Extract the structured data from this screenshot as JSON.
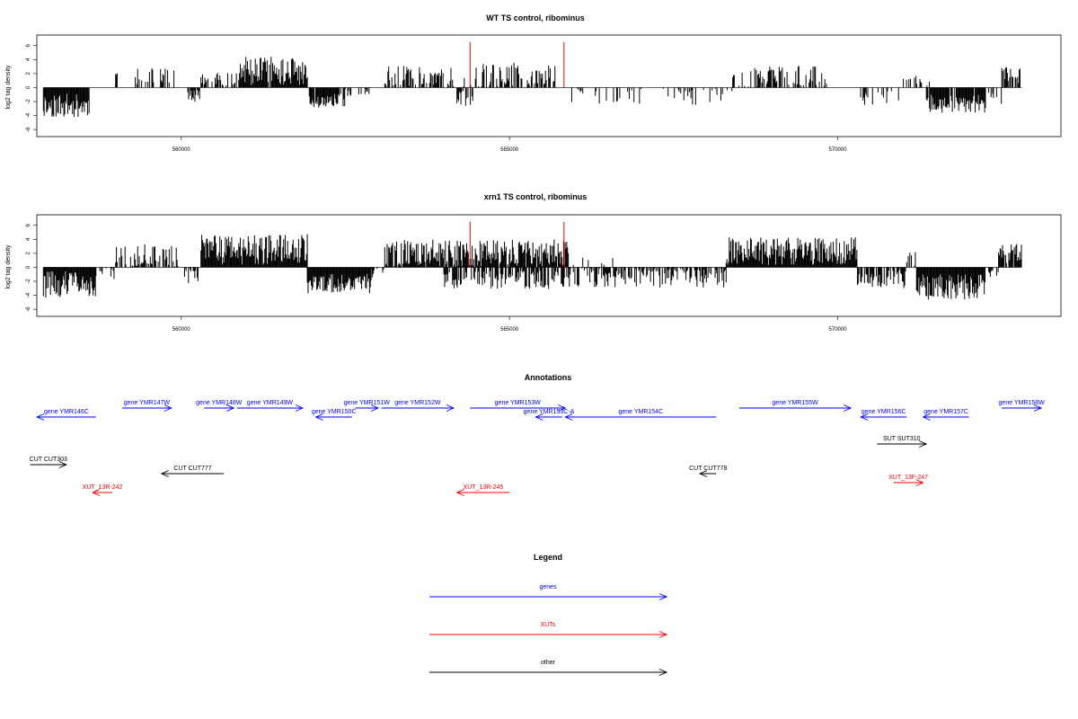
{
  "chart_data": [
    {
      "type": "bar",
      "title": "WT TS control, ribominus",
      "ylabel": "log2 tag density",
      "xlabel": "",
      "xlim": [
        557800,
        573400
      ],
      "ylim": [
        -6.5,
        7
      ],
      "yticks": [
        6,
        4,
        2,
        0,
        -2,
        -4,
        -6
      ],
      "xticks": [
        560000,
        565000,
        570000
      ],
      "xtick_labels": [
        "560000",
        "565000",
        "570000"
      ],
      "red_markers": [
        {
          "x": 564400,
          "value": 6.5
        },
        {
          "x": 565830,
          "value": 6.5
        }
      ],
      "regions": [
        {
          "start": 557900,
          "end": 558600,
          "mean": -2.6,
          "amp": 1.7,
          "density": 1.0,
          "seed": 11
        },
        {
          "start": 559000,
          "end": 559050,
          "mean": 2.0,
          "amp": 0.2,
          "density": 0.5,
          "seed": 12
        },
        {
          "start": 559300,
          "end": 559950,
          "mean": 1.6,
          "amp": 1.2,
          "density": 0.35,
          "seed": 13
        },
        {
          "start": 560100,
          "end": 560280,
          "mean": -0.8,
          "amp": 1.4,
          "density": 0.6,
          "seed": 14
        },
        {
          "start": 560300,
          "end": 560900,
          "mean": 1.2,
          "amp": 1.0,
          "density": 0.5,
          "seed": 15
        },
        {
          "start": 560900,
          "end": 561920,
          "mean": 2.4,
          "amp": 2.1,
          "density": 0.95,
          "seed": 16
        },
        {
          "start": 561950,
          "end": 562500,
          "mean": -1.9,
          "amp": 1.0,
          "density": 0.8,
          "seed": 17
        },
        {
          "start": 562500,
          "end": 562950,
          "mean": -0.4,
          "amp": 1.0,
          "density": 0.25,
          "seed": 18
        },
        {
          "start": 563100,
          "end": 564150,
          "mean": 1.5,
          "amp": 1.6,
          "density": 0.55,
          "seed": 19
        },
        {
          "start": 564300,
          "end": 565700,
          "mean": 1.7,
          "amp": 1.9,
          "density": 0.55,
          "seed": 20
        },
        {
          "start": 564200,
          "end": 564450,
          "mean": -1.5,
          "amp": 1.2,
          "density": 0.5,
          "seed": 21
        },
        {
          "start": 565900,
          "end": 567050,
          "mean": -0.8,
          "amp": 1.5,
          "density": 0.22,
          "seed": 22
        },
        {
          "start": 567200,
          "end": 568400,
          "mean": -1.0,
          "amp": 1.5,
          "density": 0.2,
          "seed": 23
        },
        {
          "start": 568400,
          "end": 569850,
          "mean": 1.6,
          "amp": 1.5,
          "density": 0.45,
          "seed": 24
        },
        {
          "start": 570350,
          "end": 570950,
          "mean": -1.5,
          "amp": 1.0,
          "density": 0.3,
          "seed": 25
        },
        {
          "start": 571000,
          "end": 571400,
          "mean": 1.0,
          "amp": 1.0,
          "density": 0.25,
          "seed": 26
        },
        {
          "start": 571350,
          "end": 572250,
          "mean": -2.3,
          "amp": 1.3,
          "density": 0.85,
          "seed": 27
        },
        {
          "start": 572300,
          "end": 572500,
          "mean": -1.5,
          "amp": 1.2,
          "density": 0.4,
          "seed": 28
        },
        {
          "start": 572500,
          "end": 572800,
          "mean": 1.8,
          "amp": 1.2,
          "density": 0.7,
          "seed": 29
        }
      ]
    },
    {
      "type": "bar",
      "title": "xrn1 TS control, ribominus",
      "ylabel": "log2 tag density",
      "xlabel": "",
      "xlim": [
        557800,
        573400
      ],
      "ylim": [
        -6.5,
        7
      ],
      "yticks": [
        6,
        4,
        2,
        0,
        -2,
        -4,
        -6
      ],
      "xticks": [
        560000,
        565000,
        570000
      ],
      "xtick_labels": [
        "560000",
        "565000",
        "570000"
      ],
      "red_markers": [
        {
          "x": 564400,
          "value": 6.5
        },
        {
          "x": 565830,
          "value": 6.5
        }
      ],
      "regions": [
        {
          "start": 557900,
          "end": 558700,
          "mean": -2.5,
          "amp": 2.0,
          "density": 1.0,
          "seed": 31
        },
        {
          "start": 558700,
          "end": 559000,
          "mean": -0.5,
          "amp": 1.2,
          "density": 0.4,
          "seed": 32
        },
        {
          "start": 559000,
          "end": 559950,
          "mean": 1.5,
          "amp": 1.8,
          "density": 0.55,
          "seed": 33
        },
        {
          "start": 560050,
          "end": 560300,
          "mean": -1.0,
          "amp": 1.3,
          "density": 0.5,
          "seed": 34
        },
        {
          "start": 560300,
          "end": 561920,
          "mean": 2.6,
          "amp": 2.2,
          "density": 1.0,
          "seed": 35
        },
        {
          "start": 561920,
          "end": 562900,
          "mean": -2.3,
          "amp": 1.4,
          "density": 1.0,
          "seed": 36
        },
        {
          "start": 562900,
          "end": 563100,
          "mean": -0.5,
          "amp": 1.0,
          "density": 0.3,
          "seed": 37
        },
        {
          "start": 563100,
          "end": 565900,
          "mean": 2.0,
          "amp": 2.0,
          "density": 0.95,
          "seed": 38
        },
        {
          "start": 564000,
          "end": 565900,
          "mean": -1.8,
          "amp": 1.3,
          "density": 0.6,
          "seed": 39
        },
        {
          "start": 565900,
          "end": 568300,
          "mean": -1.3,
          "amp": 1.6,
          "density": 0.65,
          "seed": 40
        },
        {
          "start": 565900,
          "end": 566600,
          "mean": 0.8,
          "amp": 0.8,
          "density": 0.15,
          "seed": 41
        },
        {
          "start": 568300,
          "end": 570300,
          "mean": 2.3,
          "amp": 2.0,
          "density": 1.0,
          "seed": 42
        },
        {
          "start": 570300,
          "end": 571050,
          "mean": -1.7,
          "amp": 1.3,
          "density": 0.7,
          "seed": 43
        },
        {
          "start": 571050,
          "end": 571200,
          "mean": 1.2,
          "amp": 1.0,
          "density": 0.5,
          "seed": 44
        },
        {
          "start": 571200,
          "end": 572250,
          "mean": -2.8,
          "amp": 1.8,
          "density": 1.0,
          "seed": 45
        },
        {
          "start": 572300,
          "end": 572450,
          "mean": -0.6,
          "amp": 0.8,
          "density": 0.4,
          "seed": 46
        },
        {
          "start": 572450,
          "end": 572800,
          "mean": 2.0,
          "amp": 1.4,
          "density": 0.9,
          "seed": 47
        }
      ]
    }
  ],
  "annotations": {
    "title": "Annotations",
    "features": [
      {
        "label": "gene YMR146C",
        "type": "gene",
        "start": 558700,
        "end": 557800,
        "row": 2
      },
      {
        "label": "gene YMR147W",
        "type": "gene",
        "start": 559100,
        "end": 559850,
        "row": 0
      },
      {
        "label": "gene YMR148W",
        "type": "gene",
        "start": 560350,
        "end": 560800,
        "row": 0
      },
      {
        "label": "gene YMR149W",
        "type": "gene",
        "start": 560850,
        "end": 561850,
        "row": 0
      },
      {
        "label": "gene YMR150C",
        "type": "gene",
        "start": 562600,
        "end": 562050,
        "row": 1
      },
      {
        "label": "gene YMR151W",
        "type": "gene",
        "start": 562650,
        "end": 563000,
        "row": 0
      },
      {
        "label": "gene YMR152W",
        "type": "gene",
        "start": 563050,
        "end": 564150,
        "row": 0
      },
      {
        "label": "gene YMR153W",
        "type": "gene",
        "start": 564400,
        "end": 565850,
        "row": 0
      },
      {
        "label": "gene YMR153C-A",
        "type": "gene",
        "start": 565800,
        "end": 565400,
        "row": 1
      },
      {
        "label": "gene YMR154C",
        "type": "gene",
        "start": 568150,
        "end": 565850,
        "row": 1
      },
      {
        "label": "gene YMR155W",
        "type": "gene",
        "start": 568500,
        "end": 570200,
        "row": 0
      },
      {
        "label": "gene YMR156C",
        "type": "gene",
        "start": 571050,
        "end": 570350,
        "row": 1
      },
      {
        "label": "gene YMR157C",
        "type": "gene",
        "start": 572000,
        "end": 571300,
        "row": 1
      },
      {
        "label": "gene YMR158W",
        "type": "gene",
        "start": 572500,
        "end": 573100,
        "row": 0
      },
      {
        "label": "CUT CUT303",
        "type": "other",
        "start": 557700,
        "end": 558250,
        "row": 4
      },
      {
        "label": "SUT SUT310",
        "type": "other",
        "start": 570600,
        "end": 571350,
        "row": 3
      },
      {
        "label": "CUT CUT777",
        "type": "other",
        "start": 560650,
        "end": 559700,
        "row": 5
      },
      {
        "label": "CUT CUT778",
        "type": "other",
        "start": 568150,
        "end": 567900,
        "row": 5
      },
      {
        "label": "XUT_13R-242",
        "type": "xut",
        "start": 558950,
        "end": 558650,
        "row": 7
      },
      {
        "label": "XUT_13R-245",
        "type": "xut",
        "start": 565000,
        "end": 564200,
        "row": 7
      },
      {
        "label": "XUT_13F-247",
        "type": "xut",
        "start": 570850,
        "end": 571300,
        "row": 6
      }
    ]
  },
  "legend": {
    "title": "Legend",
    "items": [
      {
        "label": "genes",
        "color": "#0000ff"
      },
      {
        "label": "XUTs",
        "color": "#ff0000"
      },
      {
        "label": "other",
        "color": "#000000"
      }
    ]
  },
  "colors": {
    "gene": "#0000ff",
    "xut": "#ff0000",
    "other": "#000000",
    "bars": "#000000",
    "marker": "#ff0000"
  }
}
